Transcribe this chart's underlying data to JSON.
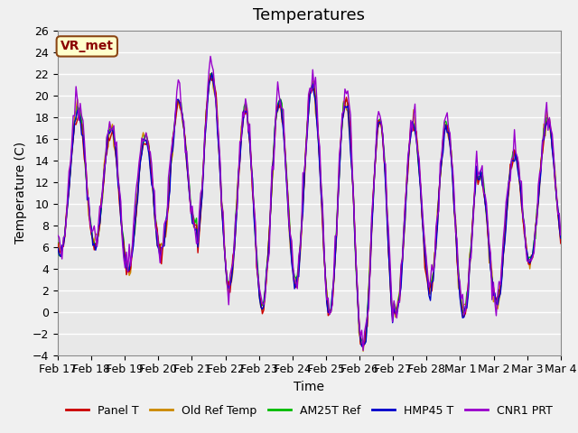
{
  "title": "Temperatures",
  "ylabel": "Temperature (C)",
  "xlabel": "Time",
  "ylim": [
    -4,
    26
  ],
  "yticks": [
    -4,
    -2,
    0,
    2,
    4,
    6,
    8,
    10,
    12,
    14,
    16,
    18,
    20,
    22,
    24,
    26
  ],
  "xtick_labels": [
    "Feb 17",
    "Feb 18",
    "Feb 19",
    "Feb 20",
    "Feb 21",
    "Feb 22",
    "Feb 23",
    "Feb 24",
    "Feb 25",
    "Feb 26",
    "Feb 27",
    "Feb 28",
    "Mar 1",
    "Mar 2",
    "Mar 3",
    "Mar 4"
  ],
  "series_colors": {
    "Panel T": "#cc0000",
    "Old Ref Temp": "#cc8800",
    "AM25T Ref": "#00bb00",
    "HMP45 T": "#0000cc",
    "CNR1 PRT": "#9900cc"
  },
  "legend_labels": [
    "Panel T",
    "Old Ref Temp",
    "AM25T Ref",
    "HMP45 T",
    "CNR1 PRT"
  ],
  "annotation_text": "VR_met",
  "background_color": "#f0f0f0",
  "plot_bg_color": "#e8e8e8",
  "grid_color": "#ffffff",
  "title_fontsize": 13,
  "axis_fontsize": 10,
  "tick_fontsize": 9
}
